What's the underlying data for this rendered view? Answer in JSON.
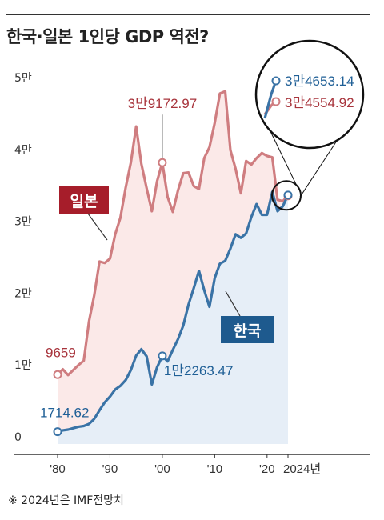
{
  "title": "한국·일본 1인당 GDP 역전?",
  "footnote": "※ 2024년은 IMF전망치",
  "colors": {
    "japan": "#cf7d80",
    "japan_fill": "#fbe9e8",
    "japan_text": "#a8343c",
    "japan_badge": "#a61d2a",
    "korea": "#3a73a6",
    "korea_fill": "#e6eef7",
    "korea_text": "#1f5f96",
    "korea_badge": "#1e5a8e"
  },
  "chart_data": {
    "type": "line",
    "title": "한국·일본 1인당 GDP 역전?",
    "xlabel": "",
    "ylabel": "",
    "xlim": [
      1980,
      2024
    ],
    "ylim": [
      0,
      50000
    ],
    "y_ticks": [
      0,
      10000,
      20000,
      30000,
      40000,
      50000
    ],
    "y_tick_labels": [
      "0",
      "1만",
      "2만",
      "3만",
      "4만",
      "5만"
    ],
    "x_ticks": [
      1980,
      1990,
      2000,
      2010,
      2020,
      2024
    ],
    "x_tick_labels": [
      "'80",
      "'90",
      "'00",
      "'10",
      "'20",
      "2024년"
    ],
    "grid": false,
    "series": [
      {
        "name": "일본",
        "x": [
          1980,
          1981,
          1982,
          1983,
          1984,
          1985,
          1986,
          1987,
          1988,
          1989,
          1990,
          1991,
          1992,
          1993,
          1994,
          1995,
          1996,
          1997,
          1998,
          1999,
          2000,
          2001,
          2002,
          2003,
          2004,
          2005,
          2006,
          2007,
          2008,
          2009,
          2010,
          2011,
          2012,
          2013,
          2014,
          2015,
          2016,
          2017,
          2018,
          2019,
          2020,
          2021,
          2022,
          2023,
          2024
        ],
        "y": [
          9659,
          10400,
          9600,
          10300,
          11000,
          11600,
          17100,
          20700,
          25400,
          25200,
          25800,
          29200,
          31500,
          35700,
          39200,
          44200,
          39000,
          35600,
          32400,
          36600,
          39172.97,
          34400,
          32300,
          35300,
          37700,
          37800,
          35900,
          35500,
          39800,
          41300,
          44700,
          48800,
          49100,
          40900,
          38300,
          34900,
          39400,
          38900,
          39800,
          40500,
          40100,
          39900,
          34000,
          33800,
          34554.92
        ]
      },
      {
        "name": "한국",
        "x": [
          1980,
          1981,
          1982,
          1983,
          1984,
          1985,
          1986,
          1987,
          1988,
          1989,
          1990,
          1991,
          1992,
          1993,
          1994,
          1995,
          1996,
          1997,
          1998,
          1999,
          2000,
          2001,
          2002,
          2003,
          2004,
          2005,
          2006,
          2007,
          2008,
          2009,
          2010,
          2011,
          2012,
          2013,
          2014,
          2015,
          2016,
          2017,
          2018,
          2019,
          2020,
          2021,
          2022,
          2023,
          2024
        ],
        "y": [
          1714.62,
          1900,
          2000,
          2200,
          2400,
          2500,
          2800,
          3500,
          4700,
          5800,
          6600,
          7600,
          8100,
          8900,
          10300,
          12300,
          13200,
          12200,
          8300,
          10700,
          12263.47,
          11500,
          13100,
          14600,
          16500,
          19400,
          21700,
          24100,
          21400,
          19100,
          23100,
          25100,
          25500,
          27200,
          29200,
          28700,
          29300,
          31600,
          33400,
          31900,
          31900,
          35100,
          32400,
          33100,
          34653.14
        ]
      }
    ],
    "annotations": [
      {
        "series": "일본",
        "x": 1980,
        "label": "9659"
      },
      {
        "series": "일본",
        "x": 2000,
        "label": "3만9172.97"
      },
      {
        "series": "일본",
        "x": 2024,
        "label": "3만4554.92"
      },
      {
        "series": "한국",
        "x": 1980,
        "label": "1714.62"
      },
      {
        "series": "한국",
        "x": 2000,
        "label": "1만2263.47"
      },
      {
        "series": "한국",
        "x": 2024,
        "label": "3만4653.14"
      }
    ],
    "series_badges": [
      "일본",
      "한국"
    ]
  }
}
